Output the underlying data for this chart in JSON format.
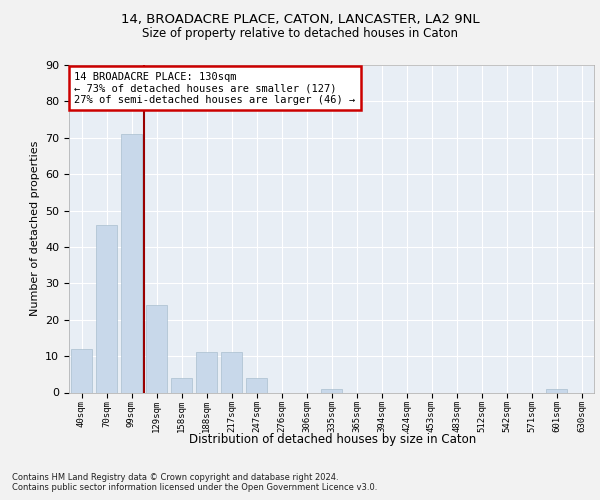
{
  "title_line1": "14, BROADACRE PLACE, CATON, LANCASTER, LA2 9NL",
  "title_line2": "Size of property relative to detached houses in Caton",
  "xlabel": "Distribution of detached houses by size in Caton",
  "ylabel": "Number of detached properties",
  "bar_color": "#c8d8ea",
  "bar_edge_color": "#aabfcf",
  "property_line_color": "#990000",
  "annotation_text": "14 BROADACRE PLACE: 130sqm\n← 73% of detached houses are smaller (127)\n27% of semi-detached houses are larger (46) →",
  "annotation_box_color": "#ffffff",
  "annotation_box_edge_color": "#cc0000",
  "footnote": "Contains HM Land Registry data © Crown copyright and database right 2024.\nContains public sector information licensed under the Open Government Licence v3.0.",
  "categories": [
    "40sqm",
    "70sqm",
    "99sqm",
    "129sqm",
    "158sqm",
    "188sqm",
    "217sqm",
    "247sqm",
    "276sqm",
    "306sqm",
    "335sqm",
    "365sqm",
    "394sqm",
    "424sqm",
    "453sqm",
    "483sqm",
    "512sqm",
    "542sqm",
    "571sqm",
    "601sqm",
    "630sqm"
  ],
  "values": [
    12,
    46,
    71,
    24,
    4,
    11,
    11,
    4,
    0,
    0,
    1,
    0,
    0,
    0,
    0,
    0,
    0,
    0,
    0,
    1,
    0
  ],
  "ylim": [
    0,
    90
  ],
  "yticks": [
    0,
    10,
    20,
    30,
    40,
    50,
    60,
    70,
    80,
    90
  ],
  "background_color": "#e8eef5",
  "fig_background": "#f2f2f2",
  "property_line_x": 2.5
}
